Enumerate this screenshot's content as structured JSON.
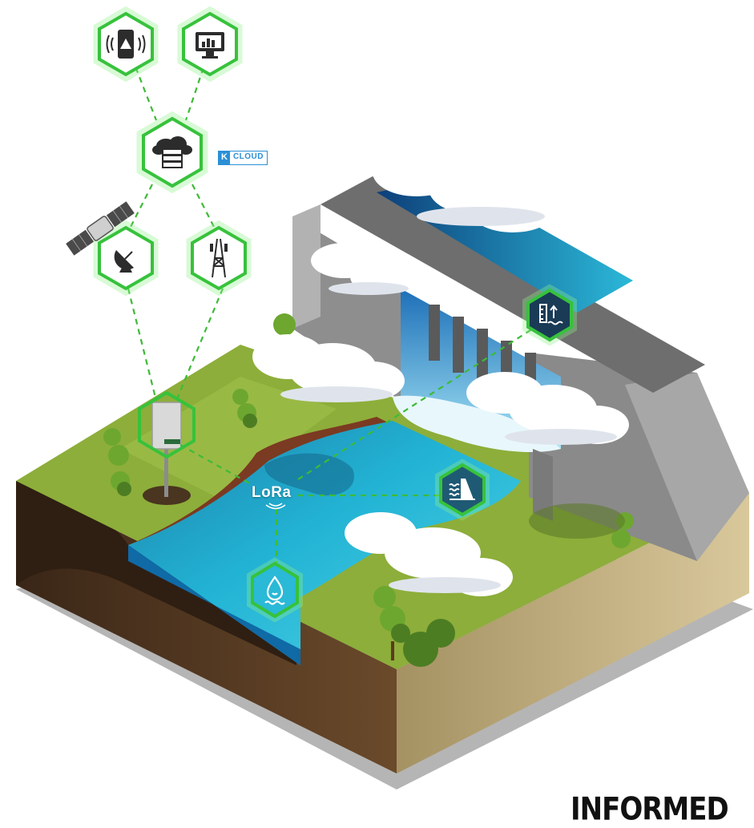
{
  "cloud_badge": {
    "k": "K",
    "label": "CLOUD"
  },
  "lora": {
    "label": "LoRa"
  },
  "watermark": {
    "text": "INFORMED"
  },
  "colors": {
    "link_green": "#3dbb37",
    "water": "#1ab0d2",
    "grass": "#8dae3a",
    "dam_concrete": "#8e8e8e",
    "kcloud_blue": "#2b8fd6"
  },
  "icons": [
    "phone-alert-icon",
    "monitor-chart-icon",
    "cloud-server-icon",
    "satellite-dish-icon",
    "cell-tower-icon",
    "datalogger-icon",
    "water-level-icon",
    "dam-level-icon",
    "water-quality-icon",
    "satellite-icon"
  ]
}
